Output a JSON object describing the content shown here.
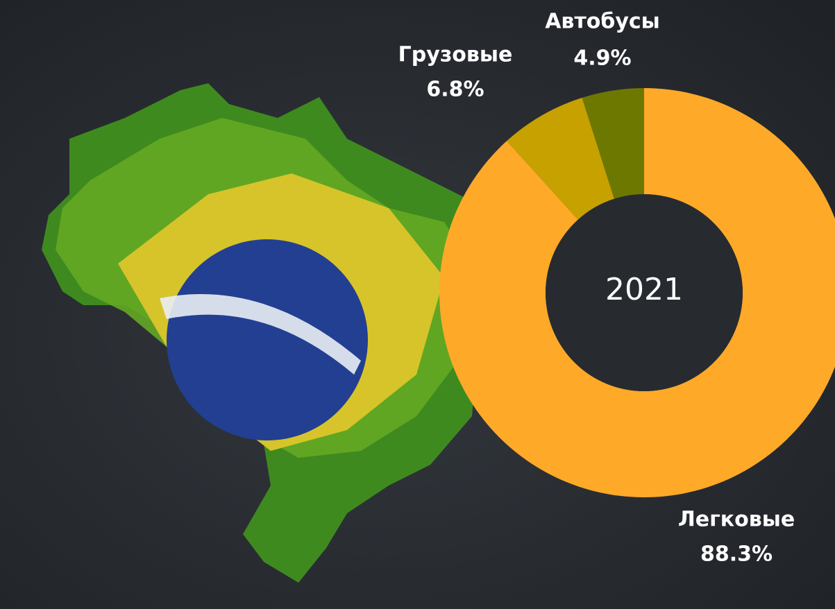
{
  "chart_data": {
    "type": "donut",
    "center_label": "2021",
    "categories": [
      "Легковые",
      "Грузовые",
      "Автобусы"
    ],
    "values": [
      88.3,
      6.8,
      4.9
    ],
    "value_labels": [
      "88.3%",
      "6.8%",
      "4.9%"
    ],
    "colors": [
      "#ffa928",
      "#c6a100",
      "#6d7800"
    ]
  }
}
